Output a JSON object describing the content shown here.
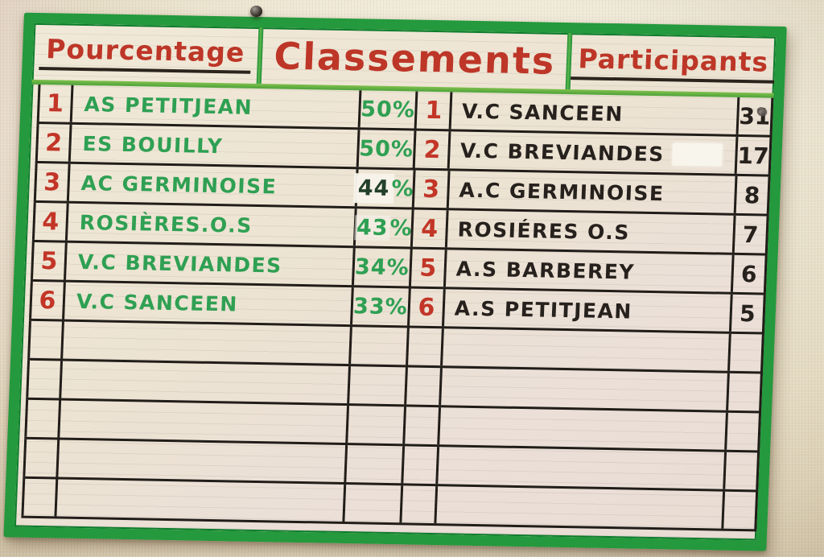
{
  "board": {
    "header": {
      "left": "Pourcentage",
      "center": "Classements",
      "right": "Participants"
    },
    "percentage_table": {
      "rows": [
        {
          "rank": "1",
          "name": "AS PETITJEAN",
          "value": "50",
          "unit": "%"
        },
        {
          "rank": "2",
          "name": "ES BOUILLY",
          "value": "50",
          "unit": "%"
        },
        {
          "rank": "3",
          "name": "AC GERMINOISE",
          "value": "44",
          "unit": "%",
          "patch": "strong"
        },
        {
          "rank": "4",
          "name": "ROSIÈRES.O.S",
          "value": "43",
          "unit": "%",
          "patch": "light"
        },
        {
          "rank": "5",
          "name": "V.C BREVIANDES",
          "value": "34",
          "unit": "%"
        },
        {
          "rank": "6",
          "name": "V.C SANCEEN",
          "value": "33",
          "unit": "%"
        }
      ],
      "empty_rows": 5
    },
    "participants_table": {
      "rows": [
        {
          "rank": "1",
          "name": "V.C SANCEEN",
          "value": "31",
          "smudge": true
        },
        {
          "rank": "2",
          "name": "V.C BREVIANDES",
          "value": "17",
          "name_patch": true
        },
        {
          "rank": "3",
          "name": "A.C GERMINOISE",
          "value": "8"
        },
        {
          "rank": "4",
          "name": "ROSIÉRES O.S",
          "value": "7"
        },
        {
          "rank": "5",
          "name": "A.S BARBEREY",
          "value": "6"
        },
        {
          "rank": "6",
          "name": "A.S PETITJEAN",
          "value": "5"
        }
      ]
    }
  },
  "colors": {
    "marker_red": "#c23527",
    "marker_green": "#2fa053",
    "marker_black": "#26211d",
    "tape_green": "#24993d",
    "header_rule_green": "#5cb84f",
    "board_surface": "#ece3d2",
    "wall": "#ece4ca"
  },
  "chart_data": [
    {
      "type": "table",
      "title": "Pourcentage",
      "columns": [
        "rank",
        "team",
        "percentage"
      ],
      "rows": [
        [
          "1",
          "AS PETITJEAN",
          "50%"
        ],
        [
          "2",
          "ES BOUILLY",
          "50%"
        ],
        [
          "3",
          "AC GERMINOISE",
          "44%"
        ],
        [
          "4",
          "ROSIÈRES.O.S",
          "43%"
        ],
        [
          "5",
          "V.C BREVIANDES",
          "34%"
        ],
        [
          "6",
          "V.C SANCEEN",
          "33%"
        ]
      ]
    },
    {
      "type": "table",
      "title": "Participants",
      "columns": [
        "rank",
        "team",
        "participants"
      ],
      "rows": [
        [
          "1",
          "V.C SANCEEN",
          "31"
        ],
        [
          "2",
          "V.C BREVIANDES",
          "17"
        ],
        [
          "3",
          "A.C GERMINOISE",
          "8"
        ],
        [
          "4",
          "ROSIÉRES O.S",
          "7"
        ],
        [
          "5",
          "A.S BARBEREY",
          "6"
        ],
        [
          "6",
          "A.S PETITJEAN",
          "5"
        ]
      ]
    }
  ]
}
